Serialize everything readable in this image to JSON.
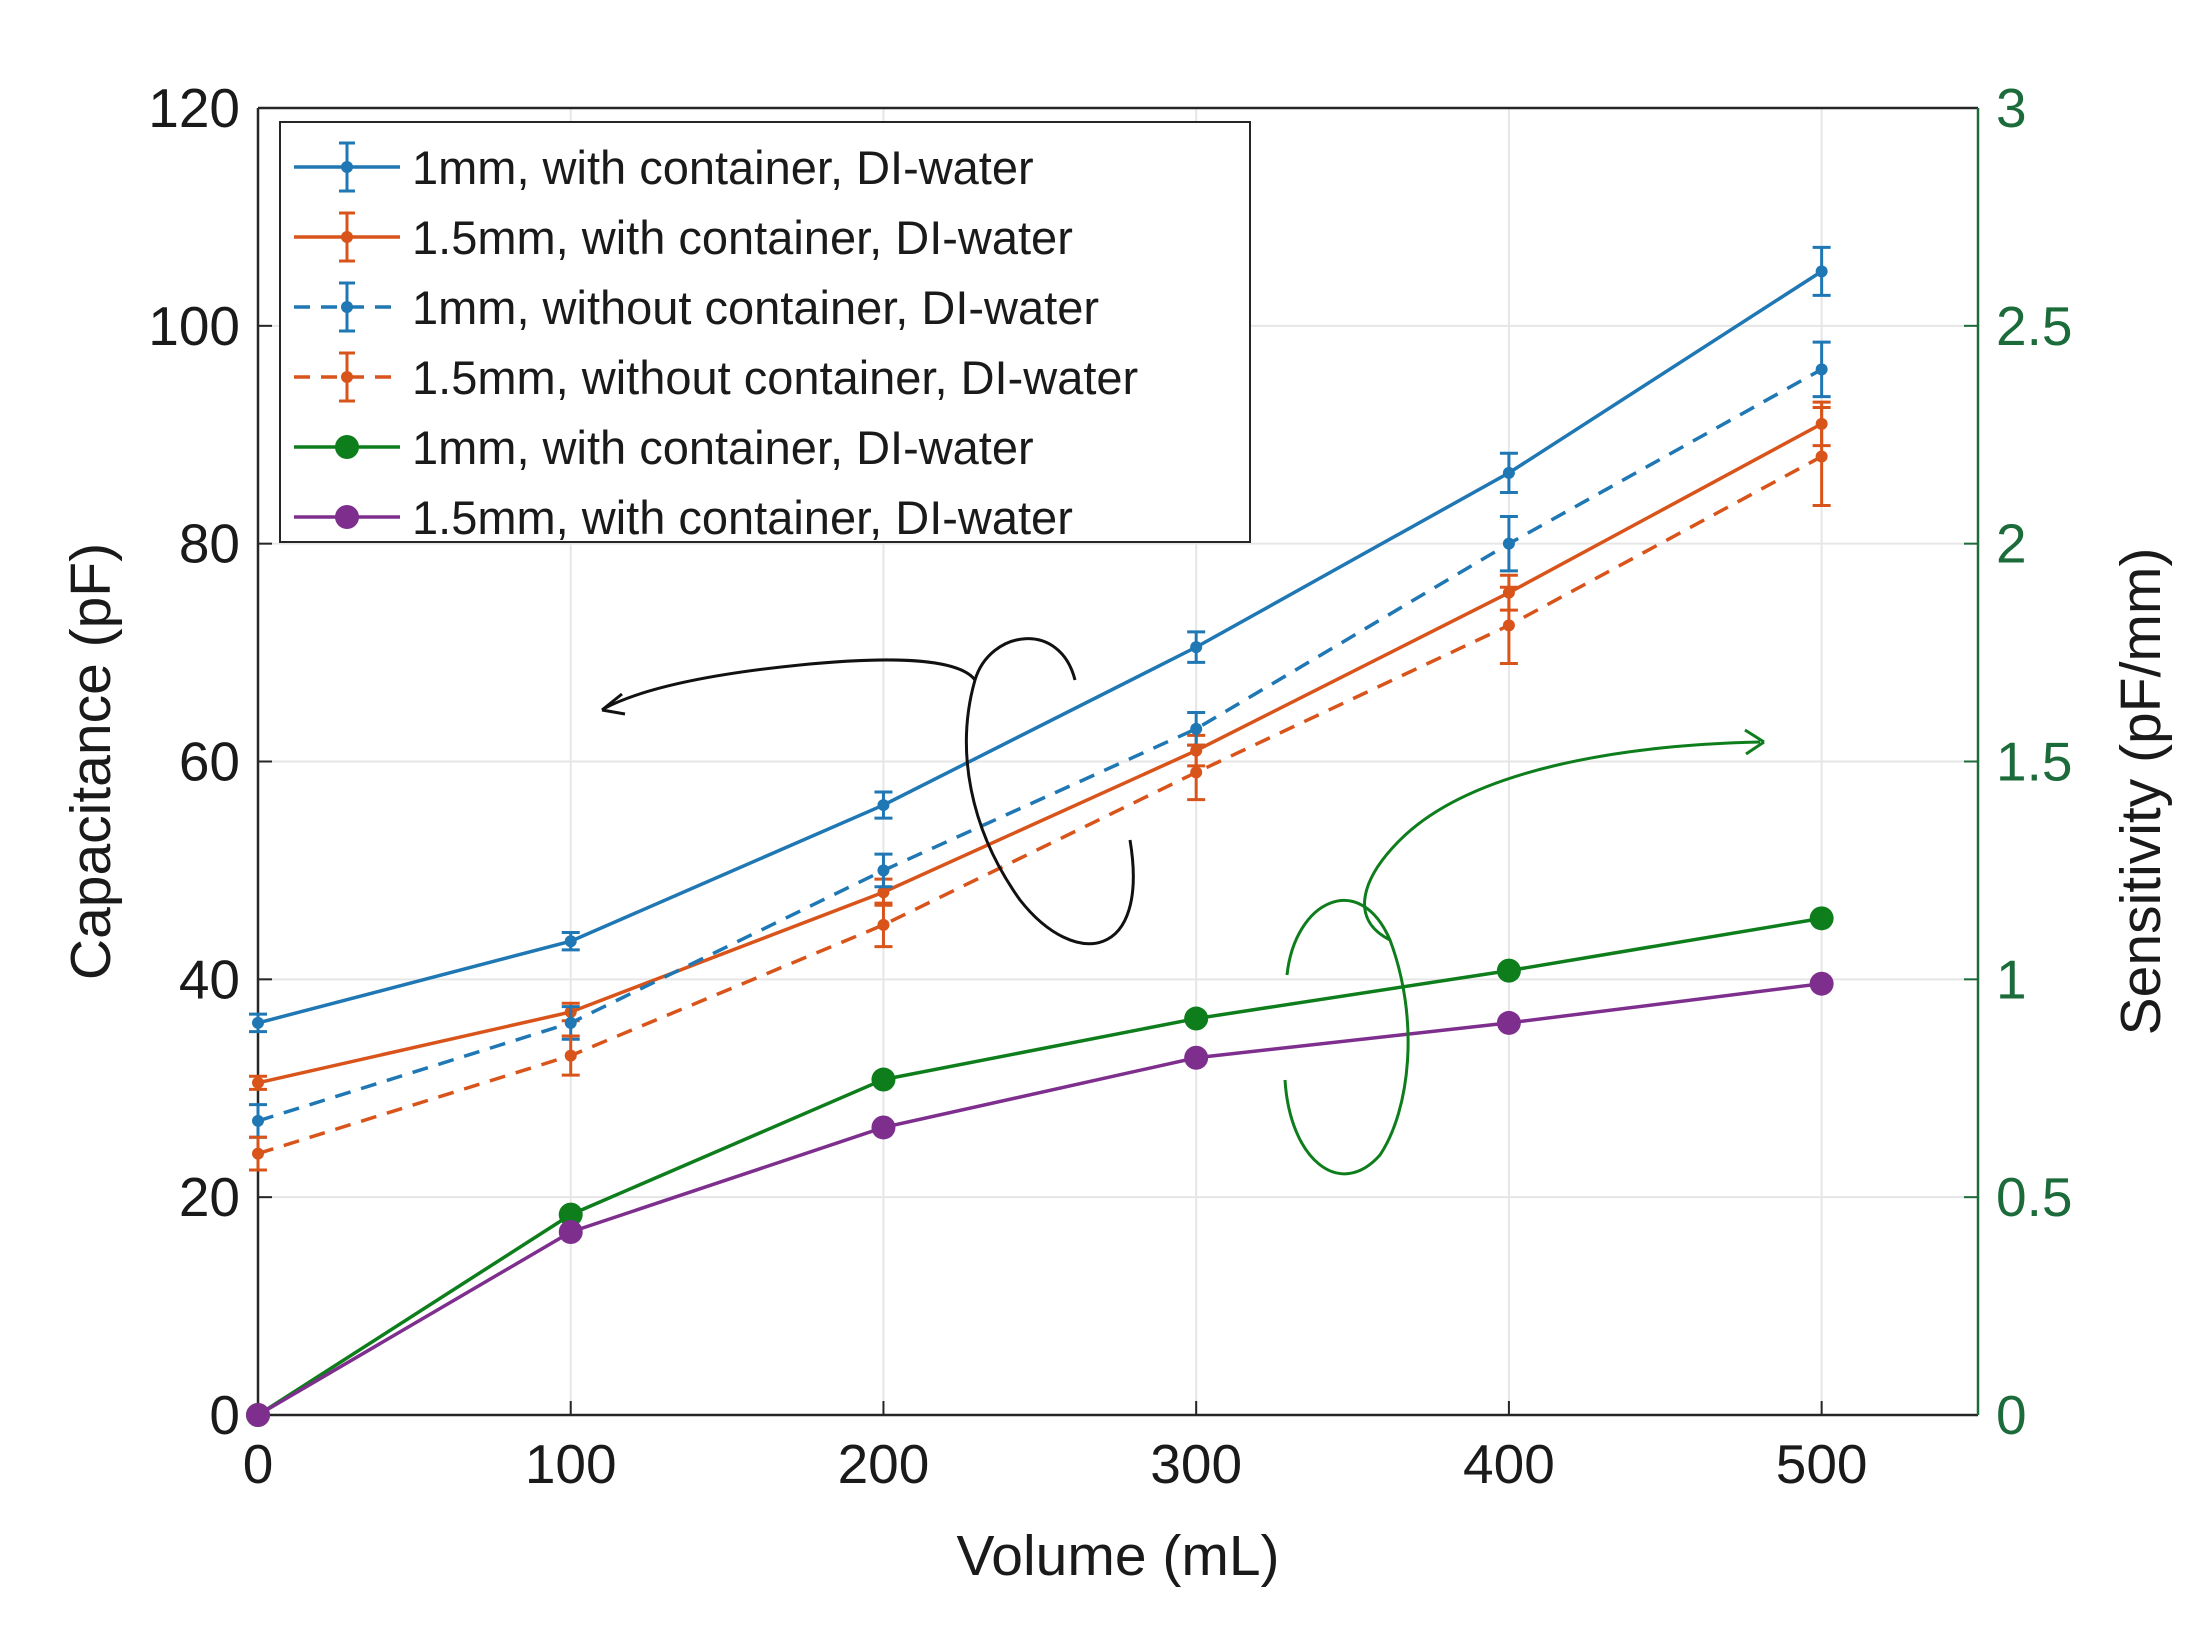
{
  "chart_data": {
    "type": "line",
    "title": "",
    "xlabel": "Volume (mL)",
    "ylabel": "Capacitance (pF)",
    "y2label": "Sensitivity (pF/mm)",
    "xlim": [
      0,
      550
    ],
    "ylim": [
      0,
      120
    ],
    "y2lim": [
      0,
      3
    ],
    "xticks": [
      "0",
      "100",
      "200",
      "300",
      "400",
      "500"
    ],
    "yticks": [
      "0",
      "20",
      "40",
      "60",
      "80",
      "100",
      "120"
    ],
    "y2ticks": [
      "0",
      "0.5",
      "1",
      "1.5",
      "2",
      "2.5",
      "3"
    ],
    "grid": true,
    "legend_position": "top-left",
    "colors": {
      "blue": "#1f77b4",
      "orange": "#d9541a",
      "green": "#0e7d1c",
      "purple": "#7e2f8e",
      "right_axis": "#1c6b3a"
    },
    "series": [
      {
        "name": "1mm, with container, DI-water",
        "axis": "left",
        "color": "#1f77b4",
        "dash": false,
        "marker": "dot-small",
        "x": [
          0,
          100,
          200,
          300,
          400,
          500
        ],
        "values": [
          36,
          43.5,
          56,
          70.5,
          86.5,
          105
        ],
        "errors": [
          0.8,
          0.8,
          1.2,
          1.4,
          1.8,
          2.2
        ]
      },
      {
        "name": "1.5mm, with container, DI-water",
        "axis": "left",
        "color": "#d9541a",
        "dash": false,
        "marker": "dot-small",
        "x": [
          0,
          100,
          200,
          300,
          400,
          500
        ],
        "values": [
          30.5,
          37,
          48,
          61,
          75.5,
          91
        ],
        "errors": [
          0.6,
          0.8,
          1.2,
          1.4,
          1.6,
          2.0
        ]
      },
      {
        "name": "1mm, without container, DI-water",
        "axis": "left",
        "color": "#1f77b4",
        "dash": true,
        "marker": "dot-small",
        "x": [
          0,
          100,
          200,
          300,
          400,
          500
        ],
        "values": [
          27,
          36,
          50,
          63,
          80,
          96
        ],
        "errors": [
          1.5,
          1.5,
          1.5,
          1.5,
          2.5,
          2.5
        ]
      },
      {
        "name": "1.5mm, without container, DI-water",
        "axis": "left",
        "color": "#d9541a",
        "dash": true,
        "marker": "dot-small",
        "x": [
          0,
          100,
          200,
          300,
          400,
          500
        ],
        "values": [
          24,
          33,
          45,
          59,
          72.5,
          88
        ],
        "errors": [
          1.5,
          1.8,
          2.0,
          2.5,
          3.5,
          4.5
        ]
      },
      {
        "name": "1mm, with container, DI-water",
        "axis": "right",
        "color": "#0e7d1c",
        "dash": false,
        "marker": "dot-large",
        "x": [
          0,
          100,
          200,
          300,
          400,
          500
        ],
        "values": [
          0,
          0.46,
          0.77,
          0.91,
          1.02,
          1.14
        ]
      },
      {
        "name": "1.5mm, with container, DI-water",
        "axis": "right",
        "color": "#7e2f8e",
        "dash": false,
        "marker": "dot-large",
        "x": [
          0,
          100,
          200,
          300,
          400,
          500
        ],
        "values": [
          0,
          0.42,
          0.66,
          0.82,
          0.9,
          0.99
        ]
      }
    ]
  }
}
